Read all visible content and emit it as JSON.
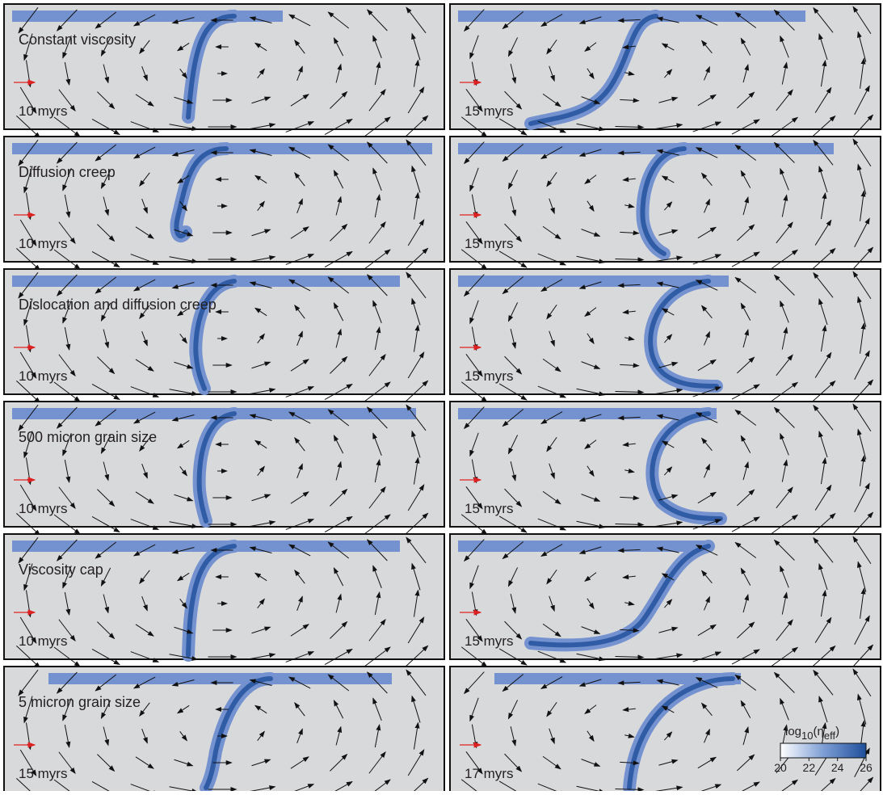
{
  "panels": [
    {
      "label": "Constant viscosity",
      "left_time": "10 myrs",
      "right_time": "15 myrs"
    },
    {
      "label": "Diffusion creep",
      "left_time": "10 myrs",
      "right_time": "15 myrs"
    },
    {
      "label": "Dislocation and diffusion creep",
      "left_time": "10 myrs",
      "right_time": "15 myrs"
    },
    {
      "label": "500 micron grain size",
      "left_time": "10 myrs",
      "right_time": "15 myrs"
    },
    {
      "label": "Viscosity cap",
      "left_time": "10 myrs",
      "right_time": "15 myrs"
    },
    {
      "label": "5 micron grain size",
      "left_time": "15 myrs",
      "right_time": "17 myrs"
    }
  ],
  "colorbar": {
    "label_parts": [
      "log",
      "10",
      "(η",
      "eff",
      ")"
    ],
    "range": [
      20,
      26
    ],
    "ticks": [
      20,
      22,
      24,
      26
    ]
  }
}
